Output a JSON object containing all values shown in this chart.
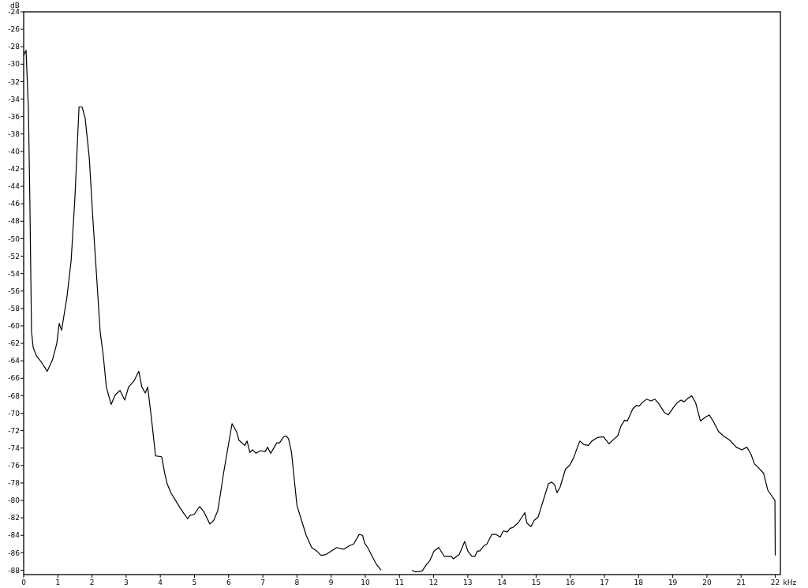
{
  "chart_data": {
    "type": "line",
    "xlabel": "kHz",
    "ylabel": "dB",
    "xlim": [
      0,
      22.15
    ],
    "ylim": [
      -88.5,
      -24
    ],
    "xticks": [
      0,
      1,
      2,
      3,
      4,
      5,
      6,
      7,
      8,
      9,
      10,
      11,
      12,
      13,
      14,
      15,
      16,
      17,
      18,
      19,
      20,
      21,
      22
    ],
    "yticks": [
      -88,
      -86,
      -84,
      -82,
      -80,
      -78,
      -76,
      -74,
      -72,
      -70,
      -68,
      -66,
      -64,
      -62,
      -60,
      -58,
      -56,
      -54,
      -52,
      -50,
      -48,
      -46,
      -44,
      -42,
      -40,
      -38,
      -36,
      -34,
      -32,
      -30,
      -28,
      -26,
      -24
    ],
    "grid": false,
    "line_style": "solid",
    "series": [
      {
        "color": "#000000",
        "x": [
          0,
          0.07,
          0.14,
          0.18,
          0.23,
          0.28,
          0.37,
          0.51,
          0.69,
          0.85,
          0.97,
          1.04,
          1.11,
          1.27,
          1.39,
          1.5,
          1.62,
          1.71,
          1.8,
          1.92,
          2.03,
          2.12,
          2.24,
          2.33,
          2.42,
          2.56,
          2.68,
          2.82,
          2.96,
          3.07,
          3.23,
          3.37,
          3.46,
          3.56,
          3.63,
          3.74,
          3.86,
          4.04,
          4.13,
          4.2,
          4.32,
          4.43,
          4.57,
          4.69,
          4.8,
          4.87,
          4.99,
          5.15,
          5.26,
          5.45,
          5.56,
          5.68,
          5.77,
          5.85,
          6.1,
          6.24,
          6.3,
          6.47,
          6.54,
          6.62,
          6.7,
          6.8,
          6.93,
          7.07,
          7.14,
          7.23,
          7.41,
          7.49,
          7.61,
          7.68,
          7.75,
          7.84,
          8,
          8.08,
          8.27,
          8.43,
          8.58,
          8.7,
          8.85,
          9.16,
          9.37,
          9.53,
          9.66,
          9.82,
          9.92,
          9.98,
          10.07,
          10.32,
          10.46,
          10.7,
          11.2,
          11.36,
          11.47,
          11.66,
          11.78,
          11.89,
          12.01,
          12.15,
          12.31,
          12.52,
          12.58,
          12.75,
          12.91,
          13,
          13.12,
          13.21,
          13.28,
          13.35,
          13.47,
          13.56,
          13.7,
          13.83,
          13.95,
          14.04,
          14.16,
          14.24,
          14.32,
          14.47,
          14.67,
          14.73,
          14.85,
          14.94,
          15.06,
          15.13,
          15.36,
          15.45,
          15.54,
          15.61,
          15.7,
          15.86,
          15.98,
          16.1,
          16.21,
          16.28,
          16.4,
          16.53,
          16.63,
          16.79,
          16.97,
          17.13,
          17.27,
          17.39,
          17.48,
          17.59,
          17.67,
          17.83,
          17.94,
          18.01,
          18.13,
          18.24,
          18.36,
          18.48,
          18.59,
          18.75,
          18.87,
          19.01,
          19.13,
          19.24,
          19.33,
          19.44,
          19.55,
          19.67,
          19.81,
          19.94,
          20.07,
          20.21,
          20.34,
          20.48,
          20.67,
          20.86,
          21.02,
          21.17,
          21.29,
          21.39,
          21.52,
          21.66,
          21.78,
          21.9,
          21.99,
          22
        ],
        "values": [
          -29,
          -28.4,
          -35.3,
          -45.3,
          -60.7,
          -62.5,
          -63.4,
          -64.1,
          -65.2,
          -63.8,
          -62,
          -59.7,
          -60.5,
          -56.6,
          -52.5,
          -45.3,
          -34.9,
          -34.9,
          -36.2,
          -40.7,
          -48,
          -53.4,
          -60.7,
          -63.4,
          -67,
          -69,
          -67.9,
          -67.4,
          -68.5,
          -67,
          -66.3,
          -65.2,
          -67,
          -67.7,
          -67,
          -70.6,
          -74.9,
          -75,
          -76.9,
          -78.1,
          -79.2,
          -79.9,
          -80.8,
          -81.5,
          -82.1,
          -81.7,
          -81.6,
          -80.7,
          -81.2,
          -82.7,
          -82.3,
          -81.2,
          -79,
          -76.9,
          -71.2,
          -72.2,
          -73.1,
          -73.7,
          -73.2,
          -74.5,
          -74.2,
          -74.6,
          -74.3,
          -74.4,
          -73.9,
          -74.6,
          -73.4,
          -73.4,
          -72.7,
          -72.6,
          -72.9,
          -74.5,
          -80.6,
          -81.6,
          -84,
          -85.4,
          -85.8,
          -86.3,
          -86.2,
          -85.4,
          -85.6,
          -85.2,
          -85,
          -83.9,
          -84,
          -84.9,
          -85.4,
          -87.3,
          -88,
          null,
          null,
          -88,
          -88.2,
          -88.1,
          -87.4,
          -86.9,
          -85.8,
          -85.4,
          -86.4,
          -86.4,
          -86.7,
          -86.2,
          -84.7,
          -85.8,
          -86.4,
          -86.4,
          -85.8,
          -85.8,
          -85.2,
          -85,
          -83.9,
          -83.9,
          -84.2,
          -83.5,
          -83.6,
          -83.2,
          -83.1,
          -82.6,
          -81.4,
          -82.6,
          -83,
          -82.3,
          -81.9,
          -81,
          -78.1,
          -77.9,
          -78.2,
          -79.1,
          -78.5,
          -76.4,
          -76,
          -75.1,
          -73.9,
          -73.2,
          -73.6,
          -73.7,
          -73.2,
          -72.8,
          -72.7,
          -73.5,
          -73,
          -72.6,
          -71.5,
          -70.8,
          -70.9,
          -69.5,
          -69.1,
          -69.2,
          -68.7,
          -68.4,
          -68.6,
          -68.4,
          -68.9,
          -69.9,
          -70.2,
          -69.4,
          -68.8,
          -68.5,
          -68.7,
          -68.3,
          -68,
          -68.8,
          -70.9,
          -70.5,
          -70.2,
          -71.1,
          -72.1,
          -72.6,
          -73.1,
          -73.9,
          -74.2,
          -73.9,
          -74.7,
          -75.8,
          -76.3,
          -76.9,
          -78.8,
          -79.5,
          -80,
          -86.3
        ]
      }
    ]
  }
}
